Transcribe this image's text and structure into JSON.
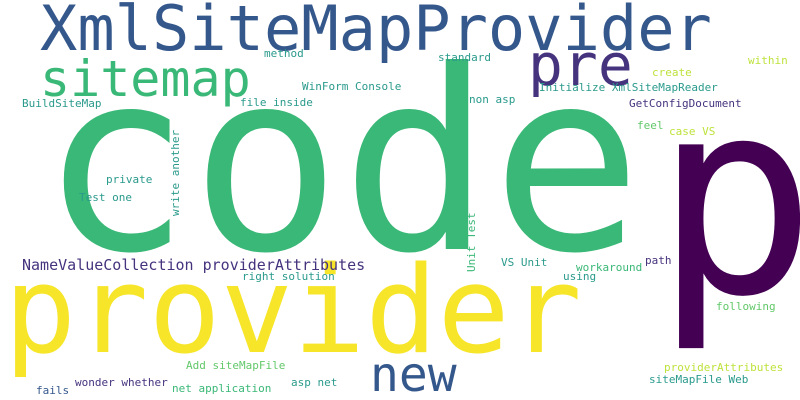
{
  "words": [
    {
      "text": "code",
      "color": "#3ab877"
    },
    {
      "text": "p",
      "color": "#440154"
    },
    {
      "text": "provider",
      "color": "#f6e528"
    },
    {
      "text": "XmlSiteMapProvider",
      "color": "#35588c"
    },
    {
      "text": "sitemap",
      "color": "#3ab877"
    },
    {
      "text": "pre",
      "color": "#46337e"
    },
    {
      "text": "new",
      "color": "#35588c"
    },
    {
      "text": "NameValueCollection providerAttributes",
      "color": "#46337e"
    },
    {
      "text": "WinForm Console",
      "color": "#2a9a8c"
    },
    {
      "text": "BuildSiteMap",
      "color": "#2a9a8c"
    },
    {
      "text": "file inside",
      "color": "#2a9a8c"
    },
    {
      "text": "method",
      "color": "#2a9a8c"
    },
    {
      "text": "standard",
      "color": "#2a9a8c"
    },
    {
      "text": "non asp",
      "color": "#2a9a8c"
    },
    {
      "text": "Initialize XmlSiteMapReader",
      "color": "#2a9a8c"
    },
    {
      "text": "GetConfigDocument",
      "color": "#46337e"
    },
    {
      "text": "create",
      "color": "#bde23a"
    },
    {
      "text": "within",
      "color": "#bde23a"
    },
    {
      "text": "feel",
      "color": "#62c86a"
    },
    {
      "text": "case VS",
      "color": "#bde23a"
    },
    {
      "text": "private",
      "color": "#2a9a8c"
    },
    {
      "text": "Test one",
      "color": "#2a9a8c"
    },
    {
      "text": "write another",
      "color": "#2a9a8c"
    },
    {
      "text": "Unit Test",
      "color": "#3ab877"
    },
    {
      "text": "VS Unit",
      "color": "#2a9a8c"
    },
    {
      "text": "right solution",
      "color": "#2a9a8c"
    },
    {
      "text": "workaround",
      "color": "#3ab877"
    },
    {
      "text": "using",
      "color": "#2a9a8c"
    },
    {
      "text": "path",
      "color": "#46337e"
    },
    {
      "text": "following",
      "color": "#62c86a"
    },
    {
      "text": "Add siteMapFile",
      "color": "#62c86a"
    },
    {
      "text": "providerAttributes",
      "color": "#bde23a"
    },
    {
      "text": "wonder whether",
      "color": "#46337e"
    },
    {
      "text": "asp net",
      "color": "#2a9a8c"
    },
    {
      "text": "siteMapFile Web",
      "color": "#2a9a8c"
    },
    {
      "text": "fails",
      "color": "#35588c"
    },
    {
      "text": "net application",
      "color": "#3ab877"
    }
  ]
}
